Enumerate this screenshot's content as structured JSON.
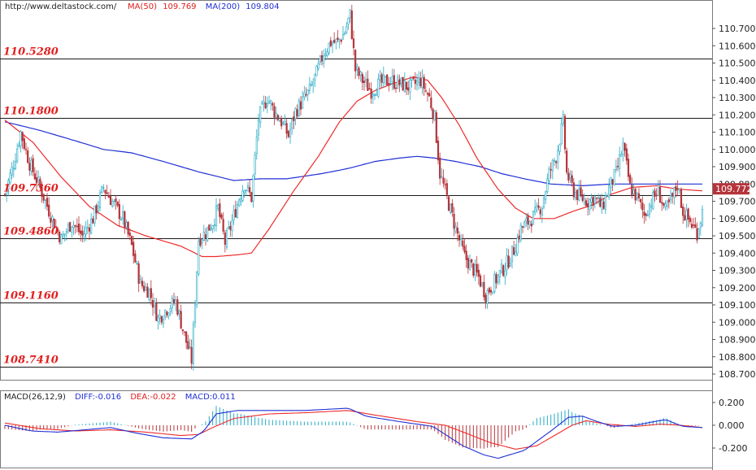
{
  "header": {
    "url": "http://www.deltastock.com/",
    "ma50_label": "MA(50)",
    "ma50_value": "109.769",
    "ma200_label": "MA(200)",
    "ma200_value": "109.804"
  },
  "current_price": "109.772",
  "colors": {
    "candle_up": "#26a9c4",
    "candle_down": "#b5343a",
    "ma50": "#ee2b2b",
    "ma200": "#1f2fd6",
    "level_text": "#e21f1f",
    "axis_text": "#222222",
    "price_tag_bg": "#b5343a"
  },
  "levels": [
    {
      "label": "110.5280",
      "value": 110.528
    },
    {
      "label": "110.1800",
      "value": 110.18
    },
    {
      "label": "109.7360",
      "value": 109.736
    },
    {
      "label": "109.4860",
      "value": 109.486
    },
    {
      "label": "109.1160",
      "value": 109.116
    },
    {
      "label": "108.7410",
      "value": 108.741
    }
  ],
  "macd_header": {
    "name": "MACD(26,12,9)",
    "diff": "DIFF:-0.016",
    "dea": "DEA:-0.022",
    "macd": "MACD:0.011"
  },
  "chart_data": {
    "type": "candlestick",
    "price_axis": {
      "range": [
        108.65,
        110.85
      ],
      "ticks": [
        "110.700",
        "110.600",
        "110.500",
        "110.400",
        "110.300",
        "110.200",
        "110.100",
        "110.000",
        "109.900",
        "109.800",
        "109.700",
        "109.600",
        "109.500",
        "109.400",
        "109.300",
        "109.200",
        "109.100",
        "109.000",
        "108.900",
        "108.800",
        "108.700"
      ]
    },
    "macd_axis": {
      "range": [
        -0.3,
        0.3
      ],
      "ticks": [
        "0.200",
        "0.000",
        "-0.200"
      ]
    },
    "close_path": [
      [
        0,
        109.74
      ],
      [
        5,
        109.92
      ],
      [
        9,
        110.1
      ],
      [
        14,
        109.92
      ],
      [
        20,
        109.78
      ],
      [
        26,
        109.62
      ],
      [
        32,
        109.48
      ],
      [
        38,
        109.58
      ],
      [
        44,
        109.5
      ],
      [
        50,
        109.6
      ],
      [
        56,
        109.78
      ],
      [
        62,
        109.68
      ],
      [
        67,
        109.6
      ],
      [
        72,
        109.44
      ],
      [
        77,
        109.22
      ],
      [
        82,
        109.18
      ],
      [
        87,
        109.02
      ],
      [
        92,
        109.08
      ],
      [
        97,
        109.12
      ],
      [
        101,
        108.96
      ],
      [
        106,
        108.78
      ],
      [
        110,
        109.48
      ],
      [
        114,
        109.52
      ],
      [
        118,
        109.58
      ],
      [
        121,
        109.66
      ],
      [
        125,
        109.46
      ],
      [
        129,
        109.58
      ],
      [
        133,
        109.72
      ],
      [
        136,
        109.8
      ],
      [
        140,
        109.72
      ],
      [
        144,
        110.18
      ],
      [
        149,
        110.3
      ],
      [
        153,
        110.22
      ],
      [
        157,
        110.16
      ],
      [
        161,
        110.08
      ],
      [
        165,
        110.22
      ],
      [
        169,
        110.28
      ],
      [
        173,
        110.34
      ],
      [
        177,
        110.44
      ],
      [
        181,
        110.56
      ],
      [
        185,
        110.62
      ],
      [
        189,
        110.62
      ],
      [
        193,
        110.68
      ],
      [
        196,
        110.78
      ],
      [
        199,
        110.46
      ],
      [
        203,
        110.4
      ],
      [
        208,
        110.34
      ],
      [
        213,
        110.38
      ],
      [
        218,
        110.4
      ],
      [
        224,
        110.38
      ],
      [
        230,
        110.36
      ],
      [
        236,
        110.4
      ],
      [
        241,
        110.3
      ],
      [
        244,
        110.18
      ],
      [
        247,
        109.86
      ],
      [
        251,
        109.72
      ],
      [
        256,
        109.54
      ],
      [
        261,
        109.38
      ],
      [
        265,
        109.32
      ],
      [
        269,
        109.26
      ],
      [
        273,
        109.16
      ],
      [
        277,
        109.22
      ],
      [
        281,
        109.28
      ],
      [
        285,
        109.34
      ],
      [
        289,
        109.42
      ],
      [
        293,
        109.54
      ],
      [
        297,
        109.58
      ],
      [
        301,
        109.62
      ],
      [
        305,
        109.68
      ],
      [
        309,
        109.86
      ],
      [
        313,
        109.96
      ],
      [
        317,
        110.16
      ],
      [
        319,
        109.86
      ],
      [
        323,
        109.76
      ],
      [
        327,
        109.72
      ],
      [
        331,
        109.7
      ],
      [
        335,
        109.72
      ],
      [
        339,
        109.66
      ],
      [
        343,
        109.78
      ],
      [
        347,
        109.86
      ],
      [
        351,
        110.02
      ],
      [
        355,
        109.78
      ],
      [
        359,
        109.72
      ],
      [
        363,
        109.62
      ],
      [
        367,
        109.7
      ],
      [
        371,
        109.76
      ],
      [
        375,
        109.64
      ],
      [
        379,
        109.72
      ],
      [
        382,
        109.8
      ],
      [
        385,
        109.64
      ],
      [
        389,
        109.58
      ],
      [
        393,
        109.52
      ],
      [
        396,
        109.64
      ]
    ],
    "ma50_path": [
      [
        0,
        110.17
      ],
      [
        16,
        110.04
      ],
      [
        32,
        109.84
      ],
      [
        48,
        109.67
      ],
      [
        64,
        109.56
      ],
      [
        80,
        109.5
      ],
      [
        100,
        109.44
      ],
      [
        106,
        109.41
      ],
      [
        112,
        109.38
      ],
      [
        120,
        109.38
      ],
      [
        132,
        109.39
      ],
      [
        140,
        109.4
      ],
      [
        150,
        109.54
      ],
      [
        164,
        109.76
      ],
      [
        178,
        109.96
      ],
      [
        190,
        110.16
      ],
      [
        200,
        110.28
      ],
      [
        210,
        110.34
      ],
      [
        220,
        110.38
      ],
      [
        232,
        110.42
      ],
      [
        240,
        110.4
      ],
      [
        248,
        110.3
      ],
      [
        258,
        110.14
      ],
      [
        268,
        109.95
      ],
      [
        280,
        109.77
      ],
      [
        290,
        109.66
      ],
      [
        300,
        109.6
      ],
      [
        312,
        109.6
      ],
      [
        322,
        109.64
      ],
      [
        334,
        109.68
      ],
      [
        344,
        109.74
      ],
      [
        356,
        109.78
      ],
      [
        370,
        109.79
      ],
      [
        382,
        109.77
      ],
      [
        396,
        109.76
      ]
    ],
    "ma200_path": [
      [
        0,
        110.16
      ],
      [
        20,
        110.11
      ],
      [
        40,
        110.05
      ],
      [
        56,
        110.0
      ],
      [
        72,
        109.98
      ],
      [
        90,
        109.93
      ],
      [
        110,
        109.87
      ],
      [
        130,
        109.82
      ],
      [
        145,
        109.83
      ],
      [
        160,
        109.83
      ],
      [
        180,
        109.86
      ],
      [
        195,
        109.89
      ],
      [
        210,
        109.93
      ],
      [
        224,
        109.95
      ],
      [
        234,
        109.96
      ],
      [
        244,
        109.95
      ],
      [
        256,
        109.93
      ],
      [
        270,
        109.9
      ],
      [
        282,
        109.86
      ],
      [
        295,
        109.83
      ],
      [
        310,
        109.8
      ],
      [
        328,
        109.79
      ],
      [
        345,
        109.8
      ],
      [
        360,
        109.8
      ],
      [
        380,
        109.8
      ],
      [
        396,
        109.8
      ]
    ],
    "macd_diff_path": [
      [
        0,
        0.0
      ],
      [
        15,
        -0.05
      ],
      [
        30,
        -0.06
      ],
      [
        45,
        -0.04
      ],
      [
        60,
        -0.02
      ],
      [
        75,
        -0.07
      ],
      [
        90,
        -0.11
      ],
      [
        106,
        -0.12
      ],
      [
        113,
        -0.05
      ],
      [
        120,
        0.1
      ],
      [
        132,
        0.13
      ],
      [
        150,
        0.13
      ],
      [
        170,
        0.13
      ],
      [
        195,
        0.15
      ],
      [
        205,
        0.08
      ],
      [
        225,
        0.03
      ],
      [
        243,
        -0.01
      ],
      [
        260,
        -0.18
      ],
      [
        272,
        -0.26
      ],
      [
        280,
        -0.29
      ],
      [
        295,
        -0.22
      ],
      [
        310,
        -0.05
      ],
      [
        320,
        0.07
      ],
      [
        328,
        0.08
      ],
      [
        335,
        0.04
      ],
      [
        345,
        -0.01
      ],
      [
        358,
        -0.0
      ],
      [
        368,
        0.03
      ],
      [
        375,
        0.05
      ],
      [
        385,
        -0.01
      ],
      [
        396,
        -0.02
      ]
    ],
    "macd_dea_path": [
      [
        0,
        0.02
      ],
      [
        20,
        -0.03
      ],
      [
        40,
        -0.05
      ],
      [
        60,
        -0.04
      ],
      [
        80,
        -0.06
      ],
      [
        100,
        -0.09
      ],
      [
        110,
        -0.08
      ],
      [
        118,
        -0.02
      ],
      [
        130,
        0.06
      ],
      [
        150,
        0.1
      ],
      [
        170,
        0.11
      ],
      [
        195,
        0.13
      ],
      [
        210,
        0.09
      ],
      [
        235,
        0.03
      ],
      [
        250,
        0.0
      ],
      [
        262,
        -0.07
      ],
      [
        275,
        -0.15
      ],
      [
        290,
        -0.21
      ],
      [
        302,
        -0.18
      ],
      [
        312,
        -0.09
      ],
      [
        322,
        0.0
      ],
      [
        330,
        0.04
      ],
      [
        342,
        0.01
      ],
      [
        358,
        -0.01
      ],
      [
        372,
        0.01
      ],
      [
        384,
        0.0
      ],
      [
        396,
        -0.02
      ]
    ]
  }
}
